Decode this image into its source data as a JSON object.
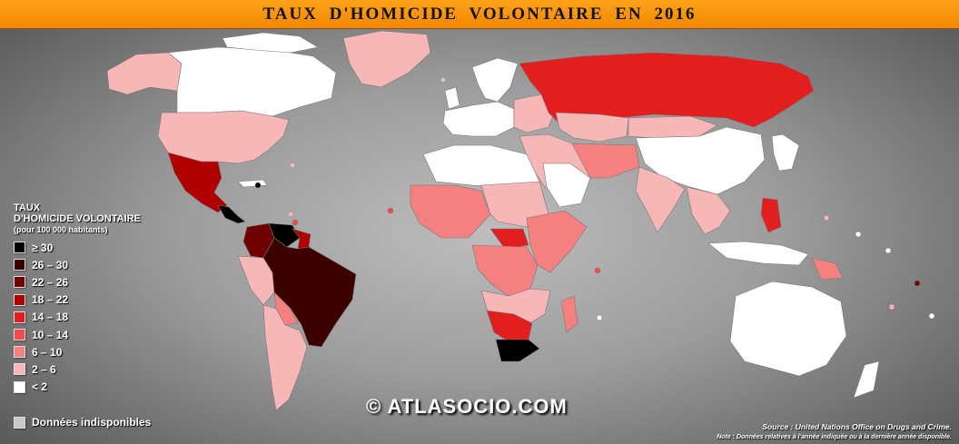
{
  "title": "TAUX  D'HOMICIDE  VOLONTAIRE  EN  2016",
  "legend": {
    "title_line1": "TAUX",
    "title_line2": "D'HOMICIDE VOLONTAIRE",
    "subtitle": "(pour 100 000 habitants)",
    "items": [
      {
        "label": "≥ 30",
        "color": "#000000"
      },
      {
        "label": "26 – 30",
        "color": "#3d0000"
      },
      {
        "label": "22 – 26",
        "color": "#6e0000"
      },
      {
        "label": "18 – 22",
        "color": "#b00000"
      },
      {
        "label": "14 – 18",
        "color": "#e21e1e"
      },
      {
        "label": "10 – 14",
        "color": "#f24a4a"
      },
      {
        "label": "6 – 10",
        "color": "#f48080"
      },
      {
        "label": "2 – 6",
        "color": "#f8b7b7"
      },
      {
        "label": "< 2",
        "color": "#ffffff"
      }
    ],
    "unavailable_label": "Données indisponibles",
    "unavailable_color": "#c8c8c8"
  },
  "watermark": "© ATLASOCIO.COM",
  "source": "Source : United Nations Office on Drugs and Crime.",
  "note": "Note : Données relatives à l'année indiquée ou à la dernière année disponible."
}
